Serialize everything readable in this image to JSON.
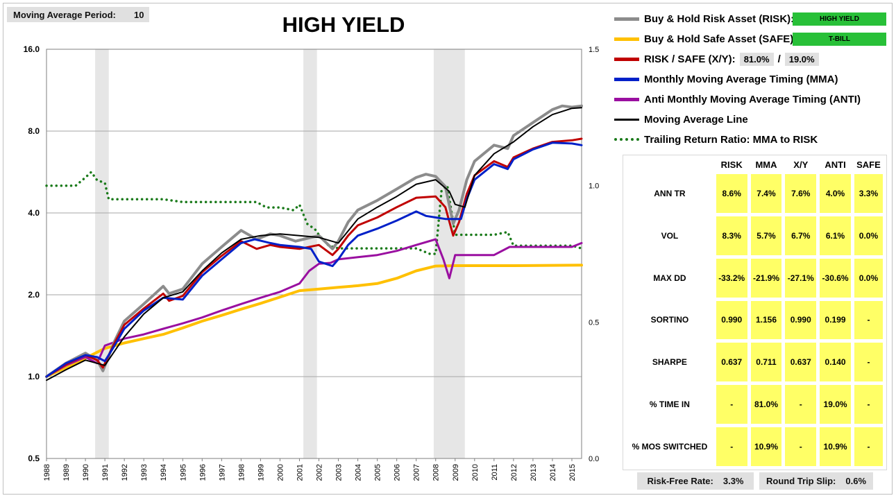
{
  "header": {
    "ma_period_label": "Moving Average Period:",
    "ma_period_value": "10",
    "title": "HIGH YIELD"
  },
  "legend": {
    "risk": "Buy & Hold Risk Asset (RISK):",
    "risk_tag": "HIGH YIELD",
    "safe": "Buy & Hold Safe Asset (SAFE):",
    "safe_tag": "T-BILL",
    "xy": "RISK / SAFE (X/Y):",
    "xy_risk_pct": "81.0%",
    "xy_sep": "/",
    "xy_safe_pct": "19.0%",
    "mma": "Monthly Moving Average Timing (MMA)",
    "anti": "Anti Monthly Moving Average Timing (ANTI)",
    "ma_line": "Moving Average Line",
    "ratio": "Trailing Return Ratio: MMA to RISK"
  },
  "colors": {
    "risk": "#8c8c8c",
    "safe": "#ffc000",
    "xy": "#c00000",
    "mma": "#0020c8",
    "anti": "#9a0fa0",
    "ma_line": "#000000",
    "ratio": "#1a7a1a",
    "recession": "#e6e6e6"
  },
  "stats": {
    "headers": [
      "",
      "RISK",
      "MMA",
      "X/Y",
      "ANTI",
      "SAFE"
    ],
    "rows": [
      {
        "label": "ANN TR",
        "values": [
          "8.6%",
          "7.4%",
          "7.6%",
          "4.0%",
          "3.3%"
        ]
      },
      {
        "label": "VOL",
        "values": [
          "8.3%",
          "5.7%",
          "6.7%",
          "6.1%",
          "0.0%"
        ]
      },
      {
        "label": "MAX DD",
        "values": [
          "-33.2%",
          "-21.9%",
          "-27.1%",
          "-30.6%",
          "0.0%"
        ]
      },
      {
        "label": "SORTINO",
        "values": [
          "0.990",
          "1.156",
          "0.990",
          "0.199",
          "-"
        ]
      },
      {
        "label": "SHARPE",
        "values": [
          "0.637",
          "0.711",
          "0.637",
          "0.140",
          "-"
        ]
      },
      {
        "label": "% TIME IN",
        "values": [
          "-",
          "81.0%",
          "-",
          "19.0%",
          "-"
        ]
      },
      {
        "label": "% MOS SWITCHED",
        "values": [
          "-",
          "10.9%",
          "-",
          "10.9%",
          "-"
        ]
      }
    ]
  },
  "footer": {
    "rf_label": "Risk-Free Rate:",
    "rf_value": "3.3%",
    "slip_label": "Round Trip Slip:",
    "slip_value": "0.6%"
  },
  "chart_data": {
    "type": "line",
    "title": "HIGH YIELD",
    "y_scale": "log2",
    "ylim": [
      0.5,
      16.0
    ],
    "y_ticks": [
      "16.0",
      "8.0",
      "4.0",
      "2.0",
      "1.0",
      "0.5"
    ],
    "y2lim": [
      0.0,
      1.5
    ],
    "y2_ticks": [
      "1.5",
      "1.0",
      "0.5",
      "0.0"
    ],
    "x_ticks": [
      "1988",
      "1989",
      "1990",
      "1991",
      "1992",
      "1993",
      "1994",
      "1995",
      "1996",
      "1997",
      "1998",
      "1999",
      "2000",
      "2001",
      "2002",
      "2003",
      "2004",
      "2005",
      "2006",
      "2007",
      "2008",
      "2009",
      "2010",
      "2011",
      "2012",
      "2013",
      "2014",
      "2015"
    ],
    "xlim": [
      1988.0,
      2015.5
    ],
    "grid": "horizontal",
    "recessions": [
      [
        1990.5,
        1991.2
      ],
      [
        2001.2,
        2001.9
      ],
      [
        2007.9,
        2009.5
      ]
    ],
    "series": [
      {
        "name": "Buy & Hold Risk Asset (RISK)",
        "key": "risk",
        "width": 4,
        "points": [
          [
            1988,
            1.0
          ],
          [
            1989,
            1.12
          ],
          [
            1990,
            1.22
          ],
          [
            1990.6,
            1.15
          ],
          [
            1990.9,
            1.05
          ],
          [
            1991.5,
            1.35
          ],
          [
            1992,
            1.6
          ],
          [
            1993,
            1.85
          ],
          [
            1994,
            2.15
          ],
          [
            1994.3,
            2.02
          ],
          [
            1995,
            2.1
          ],
          [
            1996,
            2.6
          ],
          [
            1997,
            3.0
          ],
          [
            1998,
            3.45
          ],
          [
            1998.8,
            3.2
          ],
          [
            1999.5,
            3.35
          ],
          [
            2000,
            3.3
          ],
          [
            2000.8,
            3.15
          ],
          [
            2001.2,
            3.2
          ],
          [
            2001.6,
            3.25
          ],
          [
            2002,
            3.3
          ],
          [
            2002.7,
            2.95
          ],
          [
            2003,
            3.15
          ],
          [
            2003.5,
            3.7
          ],
          [
            2004,
            4.1
          ],
          [
            2005,
            4.45
          ],
          [
            2006,
            4.9
          ],
          [
            2007,
            5.4
          ],
          [
            2007.5,
            5.55
          ],
          [
            2008,
            5.45
          ],
          [
            2008.5,
            5.0
          ],
          [
            2008.9,
            3.65
          ],
          [
            2009.2,
            4.1
          ],
          [
            2009.6,
            5.3
          ],
          [
            2010,
            6.2
          ],
          [
            2011,
            7.1
          ],
          [
            2011.7,
            6.9
          ],
          [
            2012,
            7.7
          ],
          [
            2013,
            8.6
          ],
          [
            2014,
            9.6
          ],
          [
            2014.5,
            9.9
          ],
          [
            2015,
            9.8
          ],
          [
            2015.5,
            9.9
          ]
        ]
      },
      {
        "name": "Buy & Hold Safe Asset (SAFE)",
        "key": "safe",
        "width": 4,
        "points": [
          [
            1988,
            1.0
          ],
          [
            1989,
            1.08
          ],
          [
            1990,
            1.17
          ],
          [
            1991,
            1.27
          ],
          [
            1992,
            1.33
          ],
          [
            1993,
            1.38
          ],
          [
            1994,
            1.43
          ],
          [
            1995,
            1.51
          ],
          [
            1996,
            1.6
          ],
          [
            1997,
            1.68
          ],
          [
            1998,
            1.77
          ],
          [
            1999,
            1.86
          ],
          [
            2000,
            1.96
          ],
          [
            2001,
            2.07
          ],
          [
            2002,
            2.1
          ],
          [
            2003,
            2.13
          ],
          [
            2004,
            2.16
          ],
          [
            2005,
            2.2
          ],
          [
            2006,
            2.3
          ],
          [
            2007,
            2.45
          ],
          [
            2008,
            2.55
          ],
          [
            2009,
            2.56
          ],
          [
            2010,
            2.56
          ],
          [
            2012,
            2.56
          ],
          [
            2015.5,
            2.57
          ]
        ]
      },
      {
        "name": "RISK / SAFE (X/Y)",
        "key": "xy",
        "width": 3,
        "points": [
          [
            1988,
            1.0
          ],
          [
            1989,
            1.11
          ],
          [
            1990,
            1.2
          ],
          [
            1990.6,
            1.15
          ],
          [
            1990.9,
            1.08
          ],
          [
            1991.5,
            1.33
          ],
          [
            1992,
            1.55
          ],
          [
            1993,
            1.78
          ],
          [
            1994,
            2.02
          ],
          [
            1994.3,
            1.9
          ],
          [
            1995,
            1.98
          ],
          [
            1996,
            2.42
          ],
          [
            1997,
            2.78
          ],
          [
            1998,
            3.15
          ],
          [
            1998.8,
            2.95
          ],
          [
            1999.5,
            3.05
          ],
          [
            2000,
            3.0
          ],
          [
            2001,
            2.95
          ],
          [
            2002,
            3.05
          ],
          [
            2002.7,
            2.8
          ],
          [
            2003,
            2.95
          ],
          [
            2003.5,
            3.3
          ],
          [
            2004,
            3.6
          ],
          [
            2005,
            3.85
          ],
          [
            2006,
            4.2
          ],
          [
            2007,
            4.55
          ],
          [
            2008,
            4.6
          ],
          [
            2008.5,
            4.2
          ],
          [
            2008.9,
            3.3
          ],
          [
            2009.2,
            3.7
          ],
          [
            2009.6,
            4.7
          ],
          [
            2010,
            5.5
          ],
          [
            2011,
            6.2
          ],
          [
            2011.7,
            5.9
          ],
          [
            2012,
            6.4
          ],
          [
            2013,
            6.9
          ],
          [
            2014,
            7.3
          ],
          [
            2015,
            7.4
          ],
          [
            2015.5,
            7.5
          ]
        ]
      },
      {
        "name": "Monthly Moving Average Timing (MMA)",
        "key": "mma",
        "width": 3,
        "points": [
          [
            1988,
            1.0
          ],
          [
            1989,
            1.12
          ],
          [
            1990,
            1.2
          ],
          [
            1990.6,
            1.18
          ],
          [
            1991,
            1.14
          ],
          [
            1991.5,
            1.3
          ],
          [
            1992,
            1.5
          ],
          [
            1993,
            1.75
          ],
          [
            1994,
            1.95
          ],
          [
            1995,
            1.92
          ],
          [
            1996,
            2.35
          ],
          [
            1997,
            2.7
          ],
          [
            1998,
            3.1
          ],
          [
            1998.7,
            3.2
          ],
          [
            1999.5,
            3.1
          ],
          [
            2000,
            3.05
          ],
          [
            2001,
            3.0
          ],
          [
            2001.6,
            2.95
          ],
          [
            2002,
            2.65
          ],
          [
            2002.7,
            2.55
          ],
          [
            2003,
            2.7
          ],
          [
            2003.5,
            3.05
          ],
          [
            2004,
            3.3
          ],
          [
            2005,
            3.5
          ],
          [
            2006,
            3.75
          ],
          [
            2007,
            4.05
          ],
          [
            2007.5,
            3.9
          ],
          [
            2008,
            3.85
          ],
          [
            2008.5,
            3.8
          ],
          [
            2009.3,
            3.8
          ],
          [
            2009.6,
            4.5
          ],
          [
            2010,
            5.3
          ],
          [
            2011,
            6.05
          ],
          [
            2011.7,
            5.8
          ],
          [
            2012,
            6.3
          ],
          [
            2013,
            6.85
          ],
          [
            2014,
            7.25
          ],
          [
            2015,
            7.2
          ],
          [
            2015.5,
            7.1
          ]
        ]
      },
      {
        "name": "Anti Monthly Moving Average Timing (ANTI)",
        "key": "anti",
        "width": 3,
        "points": [
          [
            1988,
            1.0
          ],
          [
            1989,
            1.1
          ],
          [
            1990,
            1.18
          ],
          [
            1990.6,
            1.12
          ],
          [
            1991,
            1.3
          ],
          [
            1992,
            1.38
          ],
          [
            1993,
            1.43
          ],
          [
            1994,
            1.5
          ],
          [
            1995,
            1.57
          ],
          [
            1996,
            1.65
          ],
          [
            1997,
            1.75
          ],
          [
            1998,
            1.85
          ],
          [
            1999,
            1.95
          ],
          [
            2000,
            2.05
          ],
          [
            2001,
            2.2
          ],
          [
            2001.5,
            2.45
          ],
          [
            2002,
            2.6
          ],
          [
            2002.6,
            2.62
          ],
          [
            2003,
            2.7
          ],
          [
            2004,
            2.75
          ],
          [
            2005,
            2.8
          ],
          [
            2006,
            2.9
          ],
          [
            2007,
            3.05
          ],
          [
            2008,
            3.2
          ],
          [
            2008.4,
            2.7
          ],
          [
            2008.7,
            2.3
          ],
          [
            2009,
            2.8
          ],
          [
            2010,
            2.8
          ],
          [
            2011,
            2.8
          ],
          [
            2011.8,
            3.0
          ],
          [
            2012,
            3.0
          ],
          [
            2015,
            3.0
          ],
          [
            2015.5,
            3.1
          ]
        ]
      },
      {
        "name": "Moving Average Line",
        "key": "ma_line",
        "width": 2,
        "points": [
          [
            1988,
            0.97
          ],
          [
            1989,
            1.06
          ],
          [
            1990,
            1.15
          ],
          [
            1991,
            1.1
          ],
          [
            1992,
            1.4
          ],
          [
            1993,
            1.7
          ],
          [
            1994,
            1.95
          ],
          [
            1995,
            2.05
          ],
          [
            1996,
            2.45
          ],
          [
            1997,
            2.85
          ],
          [
            1998,
            3.2
          ],
          [
            1999,
            3.3
          ],
          [
            2000,
            3.35
          ],
          [
            2001,
            3.3
          ],
          [
            2002,
            3.25
          ],
          [
            2003,
            3.1
          ],
          [
            2004,
            3.8
          ],
          [
            2005,
            4.2
          ],
          [
            2006,
            4.6
          ],
          [
            2007,
            5.1
          ],
          [
            2008,
            5.3
          ],
          [
            2008.7,
            4.8
          ],
          [
            2009,
            4.3
          ],
          [
            2009.5,
            4.2
          ],
          [
            2010,
            5.5
          ],
          [
            2011,
            6.6
          ],
          [
            2012,
            7.3
          ],
          [
            2013,
            8.3
          ],
          [
            2014,
            9.2
          ],
          [
            2015,
            9.7
          ],
          [
            2015.5,
            9.75
          ]
        ]
      },
      {
        "name": "Trailing Return Ratio: MMA to RISK",
        "key": "ratio",
        "width": 3,
        "axis": "right",
        "dotted": true,
        "points": [
          [
            1988,
            1.0
          ],
          [
            1989.5,
            1.0
          ],
          [
            1990,
            1.03
          ],
          [
            1990.3,
            1.05
          ],
          [
            1990.6,
            1.02
          ],
          [
            1991,
            1.01
          ],
          [
            1991.2,
            0.95
          ],
          [
            1992,
            0.95
          ],
          [
            1993,
            0.95
          ],
          [
            1994,
            0.95
          ],
          [
            1995,
            0.94
          ],
          [
            1996,
            0.94
          ],
          [
            1997,
            0.94
          ],
          [
            1998,
            0.94
          ],
          [
            1998.8,
            0.94
          ],
          [
            1999.3,
            0.92
          ],
          [
            2000,
            0.92
          ],
          [
            2000.7,
            0.91
          ],
          [
            2001,
            0.93
          ],
          [
            2001.4,
            0.86
          ],
          [
            2001.8,
            0.84
          ],
          [
            2002,
            0.82
          ],
          [
            2002.5,
            0.78
          ],
          [
            2003,
            0.77
          ],
          [
            2004,
            0.77
          ],
          [
            2005,
            0.77
          ],
          [
            2006,
            0.77
          ],
          [
            2007,
            0.77
          ],
          [
            2007.7,
            0.75
          ],
          [
            2008,
            0.75
          ],
          [
            2008.3,
            0.98
          ],
          [
            2008.6,
            1.0
          ],
          [
            2009,
            0.82
          ],
          [
            2010,
            0.82
          ],
          [
            2011,
            0.82
          ],
          [
            2011.7,
            0.83
          ],
          [
            2012,
            0.78
          ],
          [
            2013,
            0.78
          ],
          [
            2014,
            0.78
          ],
          [
            2015,
            0.78
          ],
          [
            2015.5,
            0.77
          ]
        ]
      }
    ]
  }
}
